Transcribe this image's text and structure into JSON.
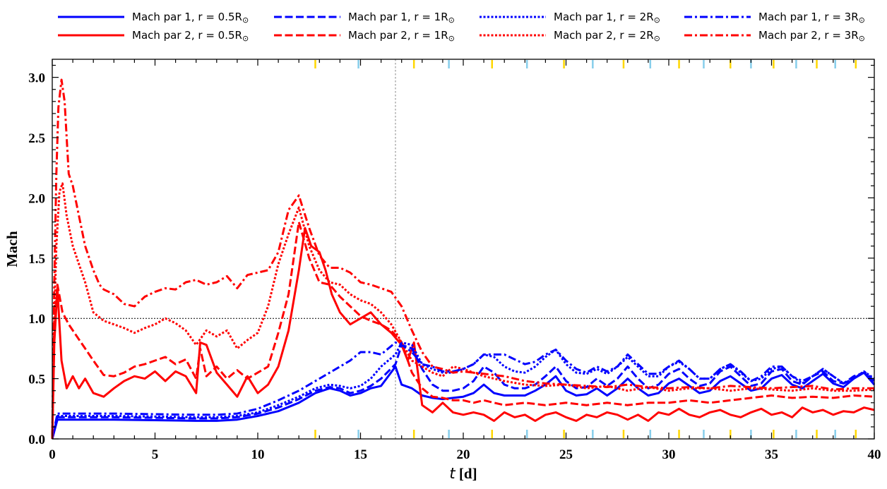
{
  "chart_data": {
    "type": "line",
    "xlabel_var": "t",
    "xlabel_unit": "[d]",
    "ylabel": "Mach",
    "xlim": [
      0,
      40
    ],
    "ylim": [
      0,
      3.15
    ],
    "xticks": [
      0,
      5,
      10,
      15,
      20,
      25,
      30,
      35,
      40
    ],
    "yticks": [
      0.0,
      0.5,
      1.0,
      1.5,
      2.0,
      2.5,
      3.0
    ],
    "xtick_labels": [
      "0",
      "5",
      "10",
      "15",
      "20",
      "25",
      "30",
      "35",
      "40"
    ],
    "ytick_labels": [
      "0.0",
      "0.5",
      "1.0",
      "1.5",
      "2.0",
      "2.5",
      "3.0"
    ],
    "reference_lines": {
      "horizontal_y": 1.0,
      "vertical_x": 16.7
    },
    "legend_position": "top, above plot, 4 columns",
    "event_markers": {
      "gold": [
        12.8,
        17.6,
        21.4,
        24.9,
        27.8,
        30.5,
        33.0,
        35.1,
        37.2,
        39.1
      ],
      "skyblue": [
        14.9,
        19.3,
        23.1,
        26.3,
        29.1,
        31.7,
        34.0,
        36.2,
        38.1
      ]
    },
    "series": [
      {
        "name": "Mach par 1, r = 0.5R",
        "color": "#0000ff",
        "dash": "solid",
        "x": [
          0,
          0.25,
          1,
          3,
          5,
          7,
          8,
          9,
          10,
          11,
          12,
          12.8,
          13.5,
          14,
          14.5,
          15,
          15.5,
          16,
          16.7,
          17,
          17.5,
          18,
          18.5,
          19,
          19.5,
          20,
          20.5,
          21,
          21.5,
          22,
          22.5,
          23,
          23.5,
          24,
          24.5,
          25,
          25.5,
          26,
          26.5,
          27,
          27.5,
          28,
          28.5,
          29,
          29.5,
          30,
          30.5,
          31,
          31.5,
          32,
          32.5,
          33,
          33.5,
          34,
          34.5,
          35,
          35.5,
          36,
          36.5,
          37,
          37.5,
          38,
          38.5,
          39,
          39.5,
          40
        ],
        "y": [
          0.0,
          0.16,
          0.16,
          0.16,
          0.155,
          0.15,
          0.15,
          0.16,
          0.19,
          0.23,
          0.3,
          0.38,
          0.42,
          0.4,
          0.36,
          0.38,
          0.42,
          0.44,
          0.6,
          0.45,
          0.42,
          0.36,
          0.34,
          0.33,
          0.34,
          0.35,
          0.38,
          0.45,
          0.38,
          0.36,
          0.36,
          0.36,
          0.4,
          0.45,
          0.52,
          0.4,
          0.36,
          0.37,
          0.42,
          0.36,
          0.42,
          0.5,
          0.42,
          0.36,
          0.38,
          0.46,
          0.5,
          0.44,
          0.38,
          0.4,
          0.48,
          0.52,
          0.46,
          0.4,
          0.42,
          0.5,
          0.53,
          0.45,
          0.42,
          0.48,
          0.54,
          0.46,
          0.43,
          0.5,
          0.55,
          0.45
        ]
      },
      {
        "name": "Mach par 2, r = 0.5R",
        "color": "#ff0000",
        "dash": "solid",
        "x": [
          0,
          0.1,
          0.25,
          0.45,
          0.7,
          1,
          1.3,
          1.6,
          2,
          2.5,
          3,
          3.5,
          4,
          4.5,
          5,
          5.5,
          6,
          6.5,
          7,
          7.2,
          7.5,
          8,
          8.5,
          9,
          9.5,
          10,
          10.5,
          11,
          11.5,
          12,
          12.3,
          12.6,
          13,
          13.3,
          13.6,
          14,
          14.5,
          15,
          15.5,
          16,
          16.5,
          17,
          17.3,
          17.6,
          18,
          18.5,
          19,
          19.5,
          20,
          20.5,
          21,
          21.5,
          22,
          22.5,
          23,
          23.5,
          24,
          24.5,
          25,
          25.5,
          26,
          26.5,
          27,
          27.5,
          28,
          28.5,
          29,
          29.5,
          30,
          30.5,
          31,
          31.5,
          32,
          32.5,
          33,
          33.5,
          34,
          34.5,
          35,
          35.5,
          36,
          36.5,
          37,
          37.5,
          38,
          38.5,
          39,
          39.5,
          40
        ],
        "y": [
          0.0,
          0.8,
          1.25,
          0.65,
          0.42,
          0.52,
          0.42,
          0.5,
          0.38,
          0.35,
          0.42,
          0.48,
          0.52,
          0.5,
          0.56,
          0.48,
          0.56,
          0.52,
          0.38,
          0.8,
          0.78,
          0.55,
          0.45,
          0.35,
          0.52,
          0.38,
          0.45,
          0.6,
          0.9,
          1.4,
          1.75,
          1.6,
          1.55,
          1.4,
          1.2,
          1.05,
          0.95,
          1.0,
          1.05,
          0.95,
          0.88,
          0.78,
          0.65,
          0.8,
          0.28,
          0.22,
          0.3,
          0.22,
          0.2,
          0.22,
          0.2,
          0.15,
          0.22,
          0.18,
          0.2,
          0.15,
          0.2,
          0.22,
          0.18,
          0.15,
          0.2,
          0.18,
          0.22,
          0.2,
          0.16,
          0.2,
          0.15,
          0.22,
          0.2,
          0.25,
          0.2,
          0.18,
          0.22,
          0.24,
          0.2,
          0.18,
          0.22,
          0.25,
          0.2,
          0.22,
          0.18,
          0.26,
          0.22,
          0.24,
          0.2,
          0.23,
          0.22,
          0.26,
          0.24
        ]
      },
      {
        "name": "Mach par 1, r = 1R",
        "color": "#0000ff",
        "dash": "dashed",
        "x": [
          0,
          0.25,
          1,
          3,
          5,
          7,
          8,
          9,
          10,
          11,
          12,
          12.8,
          13.5,
          14,
          14.5,
          15,
          15.5,
          16,
          16.7,
          17,
          17.5,
          18,
          18.5,
          19,
          19.5,
          20,
          20.5,
          21,
          21.5,
          22,
          22.5,
          23,
          23.5,
          24,
          24.5,
          25,
          25.5,
          26,
          26.5,
          27,
          27.5,
          28,
          28.5,
          29,
          29.5,
          30,
          30.5,
          31,
          31.5,
          32,
          32.5,
          33,
          33.5,
          34,
          34.5,
          35,
          35.5,
          36,
          36.5,
          37,
          37.5,
          38,
          38.5,
          39,
          39.5,
          40
        ],
        "y": [
          0.0,
          0.18,
          0.18,
          0.18,
          0.175,
          0.17,
          0.17,
          0.18,
          0.21,
          0.26,
          0.33,
          0.4,
          0.43,
          0.42,
          0.38,
          0.4,
          0.44,
          0.5,
          0.62,
          0.78,
          0.75,
          0.58,
          0.45,
          0.4,
          0.4,
          0.42,
          0.48,
          0.6,
          0.55,
          0.45,
          0.42,
          0.42,
          0.45,
          0.52,
          0.6,
          0.48,
          0.42,
          0.43,
          0.5,
          0.44,
          0.5,
          0.6,
          0.5,
          0.42,
          0.45,
          0.54,
          0.58,
          0.5,
          0.44,
          0.46,
          0.56,
          0.6,
          0.52,
          0.44,
          0.46,
          0.56,
          0.58,
          0.48,
          0.45,
          0.52,
          0.56,
          0.48,
          0.46,
          0.52,
          0.55,
          0.46
        ]
      },
      {
        "name": "Mach par 2, r = 1R",
        "color": "#ff0000",
        "dash": "dashed",
        "x": [
          0,
          0.1,
          0.25,
          0.5,
          0.8,
          1.2,
          1.6,
          2,
          2.5,
          3,
          3.5,
          4,
          4.5,
          5,
          5.5,
          6,
          6.5,
          7,
          7.2,
          7.5,
          8,
          8.5,
          9,
          9.5,
          10,
          10.5,
          11,
          11.5,
          12,
          12.5,
          13,
          13.5,
          14,
          14.5,
          15,
          15.5,
          16,
          16.5,
          17,
          17.5,
          18,
          18.5,
          19,
          19.5,
          20,
          20.5,
          21,
          21.5,
          22,
          23,
          24,
          25,
          26,
          27,
          28,
          29,
          30,
          31,
          32,
          33,
          34,
          35,
          36,
          37,
          38,
          39,
          40
        ],
        "y": [
          0.0,
          0.9,
          1.28,
          1.05,
          0.95,
          0.85,
          0.75,
          0.65,
          0.53,
          0.52,
          0.55,
          0.6,
          0.62,
          0.65,
          0.68,
          0.62,
          0.66,
          0.5,
          0.75,
          0.52,
          0.6,
          0.5,
          0.57,
          0.5,
          0.55,
          0.6,
          0.88,
          1.2,
          1.8,
          1.5,
          1.3,
          1.28,
          1.18,
          1.1,
          1.02,
          0.98,
          0.95,
          0.9,
          0.8,
          0.55,
          0.42,
          0.35,
          0.34,
          0.32,
          0.32,
          0.3,
          0.32,
          0.3,
          0.28,
          0.3,
          0.28,
          0.3,
          0.28,
          0.3,
          0.28,
          0.3,
          0.3,
          0.32,
          0.3,
          0.32,
          0.34,
          0.36,
          0.34,
          0.35,
          0.34,
          0.36,
          0.35
        ]
      },
      {
        "name": "Mach par 1, r = 2R",
        "color": "#0000ff",
        "dash": "dotted",
        "x": [
          0,
          0.25,
          1,
          3,
          5,
          7,
          8,
          9,
          10,
          11,
          12,
          12.8,
          13.5,
          14,
          14.5,
          15,
          15.5,
          16,
          16.7,
          17,
          17.5,
          18,
          18.5,
          19,
          19.5,
          20,
          20.5,
          21,
          21.5,
          22,
          22.5,
          23,
          23.5,
          24,
          24.5,
          25,
          25.5,
          26,
          26.5,
          27,
          27.5,
          28,
          28.5,
          29,
          29.5,
          30,
          30.5,
          31,
          31.5,
          32,
          32.5,
          33,
          33.5,
          34,
          34.5,
          35,
          35.5,
          36,
          36.5,
          37,
          37.5,
          38,
          38.5,
          39,
          39.5,
          40
        ],
        "y": [
          0.0,
          0.19,
          0.19,
          0.19,
          0.185,
          0.18,
          0.18,
          0.19,
          0.22,
          0.28,
          0.35,
          0.42,
          0.45,
          0.44,
          0.42,
          0.44,
          0.5,
          0.6,
          0.7,
          0.8,
          0.78,
          0.62,
          0.58,
          0.55,
          0.55,
          0.58,
          0.62,
          0.7,
          0.68,
          0.6,
          0.56,
          0.55,
          0.6,
          0.68,
          0.74,
          0.62,
          0.55,
          0.54,
          0.58,
          0.54,
          0.6,
          0.68,
          0.6,
          0.52,
          0.52,
          0.6,
          0.64,
          0.58,
          0.5,
          0.5,
          0.58,
          0.62,
          0.55,
          0.48,
          0.5,
          0.58,
          0.6,
          0.52,
          0.46,
          0.52,
          0.58,
          0.52,
          0.46,
          0.5,
          0.56,
          0.5
        ]
      },
      {
        "name": "Mach par 2, r = 2R",
        "color": "#ff0000",
        "dash": "dotted",
        "x": [
          0,
          0.1,
          0.2,
          0.35,
          0.5,
          0.7,
          1,
          1.3,
          1.6,
          2,
          2.5,
          3,
          3.5,
          4,
          4.5,
          5,
          5.5,
          6,
          6.5,
          7,
          7.5,
          8,
          8.5,
          9,
          9.5,
          10,
          10.5,
          11,
          11.5,
          12,
          12.5,
          13,
          13.5,
          14,
          14.5,
          15,
          15.5,
          16,
          16.5,
          17,
          17.5,
          18,
          18.5,
          19,
          19.5,
          20,
          21,
          22,
          23,
          24,
          25,
          26,
          27,
          28,
          29,
          30,
          31,
          32,
          33,
          34,
          35,
          36,
          37,
          38,
          39,
          40
        ],
        "y": [
          0.0,
          1.0,
          1.6,
          2.05,
          2.12,
          1.85,
          1.6,
          1.45,
          1.3,
          1.05,
          0.98,
          0.95,
          0.92,
          0.88,
          0.92,
          0.95,
          1.0,
          0.96,
          0.9,
          0.78,
          0.9,
          0.85,
          0.9,
          0.75,
          0.82,
          0.88,
          1.1,
          1.45,
          1.7,
          1.92,
          1.6,
          1.4,
          1.3,
          1.28,
          1.2,
          1.15,
          1.12,
          1.05,
          0.95,
          0.8,
          0.65,
          0.6,
          0.55,
          0.52,
          0.6,
          0.58,
          0.52,
          0.48,
          0.45,
          0.44,
          0.45,
          0.42,
          0.44,
          0.4,
          0.43,
          0.4,
          0.42,
          0.42,
          0.4,
          0.42,
          0.41,
          0.4,
          0.42,
          0.4,
          0.4,
          0.41
        ]
      },
      {
        "name": "Mach par 1, r = 3R",
        "color": "#0000ff",
        "dash": "dashdot",
        "x": [
          0,
          0.25,
          1,
          3,
          5,
          7,
          8,
          9,
          10,
          11,
          12,
          12.8,
          13.5,
          14,
          14.5,
          15,
          15.5,
          16,
          16.7,
          17,
          17.5,
          18,
          18.5,
          19,
          19.5,
          20,
          20.5,
          21,
          21.5,
          22,
          22.5,
          23,
          23.5,
          24,
          24.5,
          25,
          25.5,
          26,
          26.5,
          27,
          27.5,
          28,
          28.5,
          29,
          29.5,
          30,
          30.5,
          31,
          31.5,
          32,
          32.5,
          33,
          33.5,
          34,
          34.5,
          35,
          35.5,
          36,
          36.5,
          37,
          37.5,
          38,
          38.5,
          39,
          39.5,
          40
        ],
        "y": [
          0.0,
          0.21,
          0.21,
          0.21,
          0.205,
          0.2,
          0.2,
          0.21,
          0.25,
          0.32,
          0.4,
          0.48,
          0.55,
          0.6,
          0.65,
          0.72,
          0.72,
          0.7,
          0.8,
          0.78,
          0.72,
          0.62,
          0.6,
          0.56,
          0.56,
          0.58,
          0.62,
          0.7,
          0.7,
          0.7,
          0.66,
          0.62,
          0.64,
          0.7,
          0.74,
          0.65,
          0.58,
          0.55,
          0.6,
          0.56,
          0.6,
          0.7,
          0.62,
          0.54,
          0.54,
          0.6,
          0.65,
          0.58,
          0.5,
          0.5,
          0.58,
          0.62,
          0.56,
          0.48,
          0.52,
          0.6,
          0.6,
          0.52,
          0.48,
          0.52,
          0.58,
          0.52,
          0.46,
          0.5,
          0.56,
          0.48
        ]
      },
      {
        "name": "Mach par 2, r = 3R",
        "color": "#ff0000",
        "dash": "dashdot",
        "x": [
          0,
          0.1,
          0.2,
          0.3,
          0.45,
          0.6,
          0.8,
          1,
          1.3,
          1.6,
          2,
          2.3,
          2.5,
          3,
          3.5,
          4,
          4.5,
          5,
          5.5,
          6,
          6.5,
          7,
          7.5,
          8,
          8.5,
          9,
          9.5,
          10,
          10.5,
          11,
          11.5,
          12,
          12.5,
          13,
          13.5,
          14,
          14.5,
          15,
          15.5,
          16,
          16.5,
          17,
          17.5,
          18,
          18.5,
          19,
          19.5,
          20,
          21,
          22,
          23,
          24,
          25,
          26,
          27,
          28,
          29,
          30,
          31,
          32,
          33,
          34,
          35,
          36,
          37,
          38,
          39,
          40
        ],
        "y": [
          0.0,
          1.3,
          2.2,
          2.75,
          2.98,
          2.8,
          2.2,
          2.1,
          1.85,
          1.6,
          1.4,
          1.28,
          1.24,
          1.2,
          1.12,
          1.1,
          1.18,
          1.22,
          1.25,
          1.24,
          1.3,
          1.32,
          1.28,
          1.3,
          1.35,
          1.25,
          1.36,
          1.38,
          1.4,
          1.55,
          1.9,
          2.02,
          1.75,
          1.52,
          1.42,
          1.42,
          1.38,
          1.3,
          1.28,
          1.25,
          1.22,
          1.1,
          0.9,
          0.72,
          0.6,
          0.58,
          0.55,
          0.56,
          0.54,
          0.52,
          0.48,
          0.46,
          0.45,
          0.44,
          0.43,
          0.45,
          0.43,
          0.42,
          0.43,
          0.42,
          0.44,
          0.43,
          0.42,
          0.43,
          0.44,
          0.41,
          0.42,
          0.42
        ]
      }
    ]
  }
}
